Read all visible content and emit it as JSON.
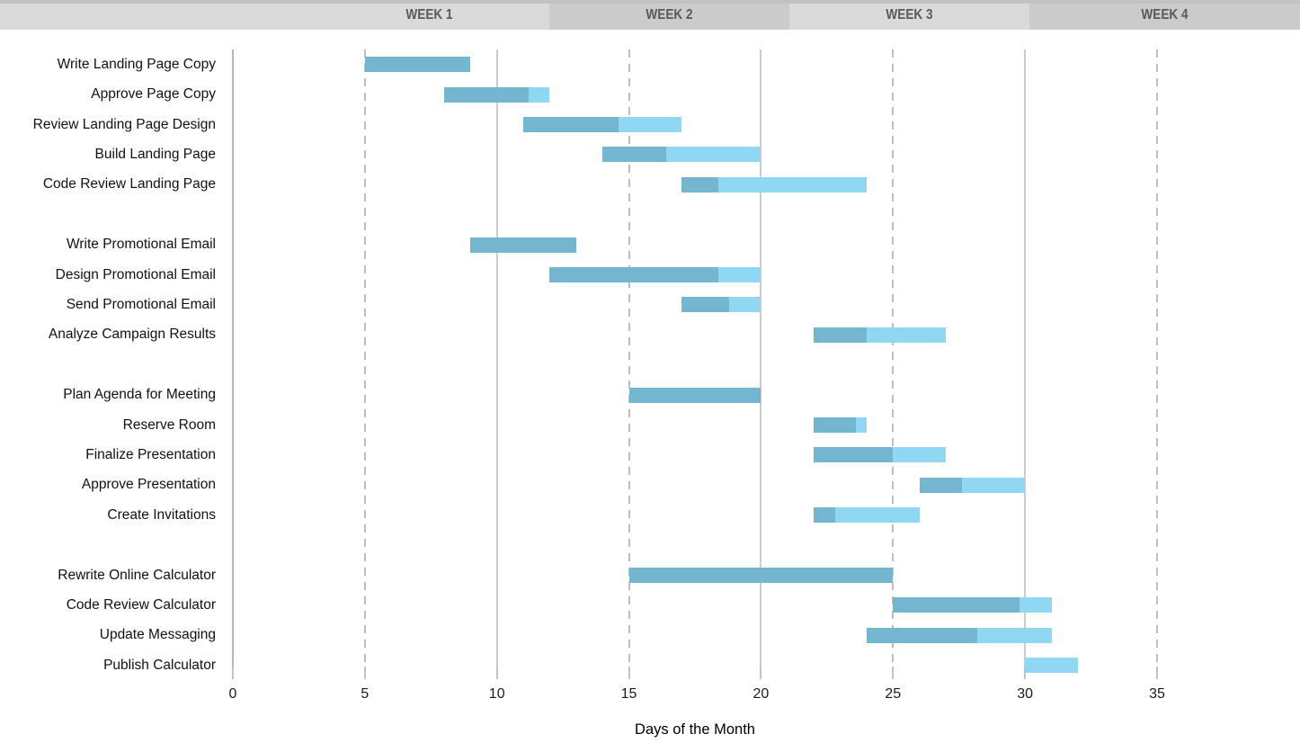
{
  "chart_data": {
    "type": "bar",
    "variant": "gantt",
    "title": "",
    "xlabel": "Days of the Month",
    "x_ticks": [
      0,
      5,
      10,
      15,
      20,
      25,
      30,
      35
    ],
    "xlim": [
      0,
      40
    ],
    "grid": "vertical, solid at 0/10/20/30/35, dashed at 5/15/25",
    "week_headers": [
      {
        "label": "WEEK 1"
      },
      {
        "label": "WEEK 2"
      },
      {
        "label": "WEEK 3"
      },
      {
        "label": "WEEK 4"
      }
    ],
    "task_groups": [
      [
        {
          "name": "Write Landing Page Copy",
          "start": 5,
          "end": 9,
          "percent_complete": 100
        },
        {
          "name": "Approve Page Copy",
          "start": 8,
          "end": 12,
          "percent_complete": 80
        },
        {
          "name": "Review Landing Page Design",
          "start": 11,
          "end": 17,
          "percent_complete": 60
        },
        {
          "name": "Build Landing Page",
          "start": 14,
          "end": 20,
          "percent_complete": 40
        },
        {
          "name": "Code Review Landing Page",
          "start": 17,
          "end": 24,
          "percent_complete": 20
        }
      ],
      [
        {
          "name": "Write Promotional Email",
          "start": 9,
          "end": 13,
          "percent_complete": 100
        },
        {
          "name": "Design Promotional Email",
          "start": 12,
          "end": 20,
          "percent_complete": 80
        },
        {
          "name": "Send Promotional Email",
          "start": 17,
          "end": 20,
          "percent_complete": 60
        },
        {
          "name": "Analyze Campaign Results",
          "start": 22,
          "end": 27,
          "percent_complete": 40
        }
      ],
      [
        {
          "name": "Plan Agenda for Meeting",
          "start": 15,
          "end": 20,
          "percent_complete": 100
        },
        {
          "name": "Reserve Room",
          "start": 22,
          "end": 24,
          "percent_complete": 80
        },
        {
          "name": "Finalize Presentation",
          "start": 22,
          "end": 27,
          "percent_complete": 60
        },
        {
          "name": "Approve Presentation",
          "start": 26,
          "end": 30,
          "percent_complete": 40
        },
        {
          "name": "Create Invitations",
          "start": 22,
          "end": 26,
          "percent_complete": 20
        }
      ],
      [
        {
          "name": "Rewrite Online Calculator",
          "start": 15,
          "end": 25,
          "percent_complete": 100
        },
        {
          "name": "Code Review Calculator",
          "start": 25,
          "end": 31,
          "percent_complete": 80
        },
        {
          "name": "Update Messaging",
          "start": 24,
          "end": 31,
          "percent_complete": 60
        },
        {
          "name": "Publish Calculator",
          "start": 30,
          "end": 32,
          "percent_complete": 0
        }
      ]
    ]
  },
  "colors": {
    "bar_complete": "#74B6CF",
    "bar_remaining": "#8FD7F2",
    "header_light": "#dadada",
    "header_dark": "#cbcbcb",
    "header_top_strip": "#c2c2c2",
    "week_text": "#595959",
    "grid_solid": "#cccccc",
    "grid_dashed": "#bdbdbd",
    "axis_line": "#b5b5b5"
  }
}
